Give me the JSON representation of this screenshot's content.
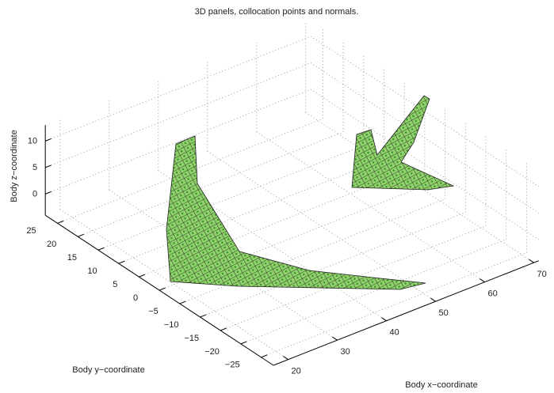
{
  "chart_data": {
    "type": "surface3d",
    "title": "3D panels, collocation points and normals.",
    "xlabel": "Body x−coordinate",
    "ylabel": "Body y−coordinate",
    "zlabel": "Body z−coordinate",
    "xlim": [
      17,
      71
    ],
    "ylim": [
      -28,
      28
    ],
    "zlim": [
      -4,
      13
    ],
    "xticks": [
      20,
      30,
      40,
      50,
      60,
      70
    ],
    "yticks": [
      {
        "value": -25,
        "label": "−25"
      },
      {
        "value": -20,
        "label": "−20"
      },
      {
        "value": -15,
        "label": "−15"
      },
      {
        "value": -10,
        "label": "−10"
      },
      {
        "value": -5,
        "label": "−5"
      },
      0,
      5,
      10,
      15,
      20,
      25
    ],
    "zticks": [
      0,
      5,
      10
    ],
    "grid": true,
    "color": "#7dc45a"
  }
}
